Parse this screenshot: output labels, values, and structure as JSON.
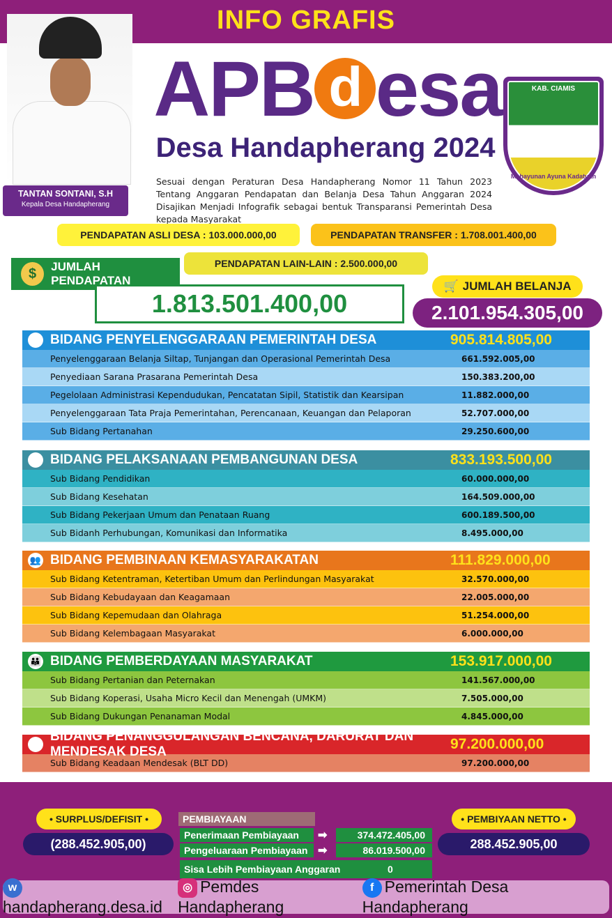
{
  "header": {
    "banner": "INFO GRAFIS",
    "title_pre": "APB",
    "title_d": "d",
    "title_post": "esa",
    "subtitle": "Desa Handapherang 2024",
    "intro": "Sesuai dengan Peraturan Desa Handapherang Nomor 11 Tahun 2023 Tentang Anggaran Pendapatan dan Belanja Desa Tahun Anggaran 2024 Disajikan Menjadi Infografik sebagai bentuk Transparansi Pemerintah Desa kepada Masyarakat"
  },
  "official": {
    "name": "TANTAN SONTANI, S.H",
    "role": "Kepala Desa Handapherang"
  },
  "logo": {
    "top": "KAB. CIAMIS",
    "motto": "Mahayunan Ayuna Kadatuan"
  },
  "income": {
    "asli": "PENDAPATAN ASLI DESA  :  103.000.000,00",
    "transfer": "PENDAPATAN TRANSFER  : 1.708.001.400,00",
    "lain": "PENDAPATAN LAIN-LAIN   :    2.500.000,00",
    "total_label": "JUMLAH PENDAPATAN",
    "total": "1.813.501.400,00"
  },
  "spending": {
    "total_label": "JUMLAH BELANJA",
    "total": "2.101.954.305,00"
  },
  "sections": [
    {
      "title": "BIDANG PENYELENGGARAAN PEMERINTAH DESA",
      "total": "905.814.805,00",
      "icon": "building-icon",
      "colors": [
        "#1e8fd8",
        "#5aaee6",
        "#a9d8f5"
      ],
      "rows": [
        [
          "Penyelenggaraan Belanja Siltap, Tunjangan dan Operasional Pemerintah Desa",
          "661.592.005,00"
        ],
        [
          "Penyediaan Sarana Prasarana Pemerintah Desa",
          "150.383.200,00"
        ],
        [
          "Pegelolaan Administrasi Kependudukan, Pencatatan Sipil, Statistik dan Kearsipan",
          "11.882.000,00"
        ],
        [
          "Penyelenggaraan Tata Praja Pemerintahan, Perencanaan,  Keuangan dan Pelaporan",
          "52.707.000,00"
        ],
        [
          "Sub Bidang Pertanahan",
          "29.250.600,00"
        ]
      ]
    },
    {
      "title": "BIDANG PELAKSANAAN PEMBANGUNAN DESA",
      "total": "833.193.500,00",
      "icon": "construction-icon",
      "colors": [
        "#3b8fa1",
        "#2fb2c4",
        "#7ecfdc"
      ],
      "rows": [
        [
          "Sub Bidang Pendidikan",
          "60.000.000,00"
        ],
        [
          "Sub Bidang Kesehatan",
          "164.509.000,00"
        ],
        [
          "Sub Bidang Pekerjaan Umum dan Penataan Ruang",
          "600.189.500,00"
        ],
        [
          "Sub Bidanh Perhubungan, Komunikasi dan Informatika",
          "8.495.000,00"
        ]
      ]
    },
    {
      "title": "BIDANG PEMBINAAN KEMASYARAKATAN",
      "total": "111.829.000,00",
      "icon": "community-icon",
      "colors": [
        "#e8761c",
        "#fdc20e",
        "#f4a76e"
      ],
      "rows": [
        [
          "Sub Bidang Ketentraman, Ketertiban Umum dan Perlindungan Masyarakat",
          "32.570.000,00"
        ],
        [
          "Sub Bidang Kebudayaan dan Keagamaan",
          "22.005.000,00"
        ],
        [
          "Sub Bidang Kepemudaan dan Olahraga",
          "51.254.000,00"
        ],
        [
          "Sub Bidang Kelembagaan Masyarakat",
          "6.000.000,00"
        ]
      ]
    },
    {
      "title": "BIDANG PEMBERDAYAAN MASYARAKAT",
      "total": "153.917.000,00",
      "icon": "people-icon",
      "colors": [
        "#1f9a3f",
        "#8dc63f",
        "#bfe08a"
      ],
      "rows": [
        [
          "Sub Bidang Pertanian dan Peternakan",
          "141.567.000,00"
        ],
        [
          "Sub Bidang Koperasi, Usaha Micro Kecil dan Menengah (UMKM)",
          "7.505.000,00"
        ],
        [
          "Sub Bidang Dukungan Penanaman Modal",
          "4.845.000,00"
        ]
      ]
    },
    {
      "title": "BIDANG PENANGGULANGAN BENCANA, DARURAT DAN MENDESAK DESA",
      "total": "97.200.000,00",
      "icon": "warning-icon",
      "colors": [
        "#d9262a",
        "#e58263",
        "#e58263"
      ],
      "rows": [
        [
          "Sub Bidang Keadaan Mendesak (BLT DD)",
          "97.200.000,00"
        ]
      ]
    }
  ],
  "financing": {
    "surplus_label": "• SURPLUS/DEFISIT •",
    "surplus": "(288.452.905,00)",
    "title": "PEMBIAYAAN",
    "penerimaan_label": "Penerimaan Pembiayaan",
    "penerimaan": "374.472.405,00",
    "pengeluaran_label": "Pengeluaraan Pembiayaan",
    "pengeluaran": "86.019.500,00",
    "silpa_label": "Sisa Lebih Pembiayaan Anggaran",
    "silpa": "0",
    "netto_label": "• PEMBIYAAN NETTO •",
    "netto": "288.452.905,00"
  },
  "footer": {
    "website": "handapherang.desa.id",
    "instagram": "Pemdes Handapherang",
    "facebook": "Pemerintah Desa Handapherang"
  }
}
